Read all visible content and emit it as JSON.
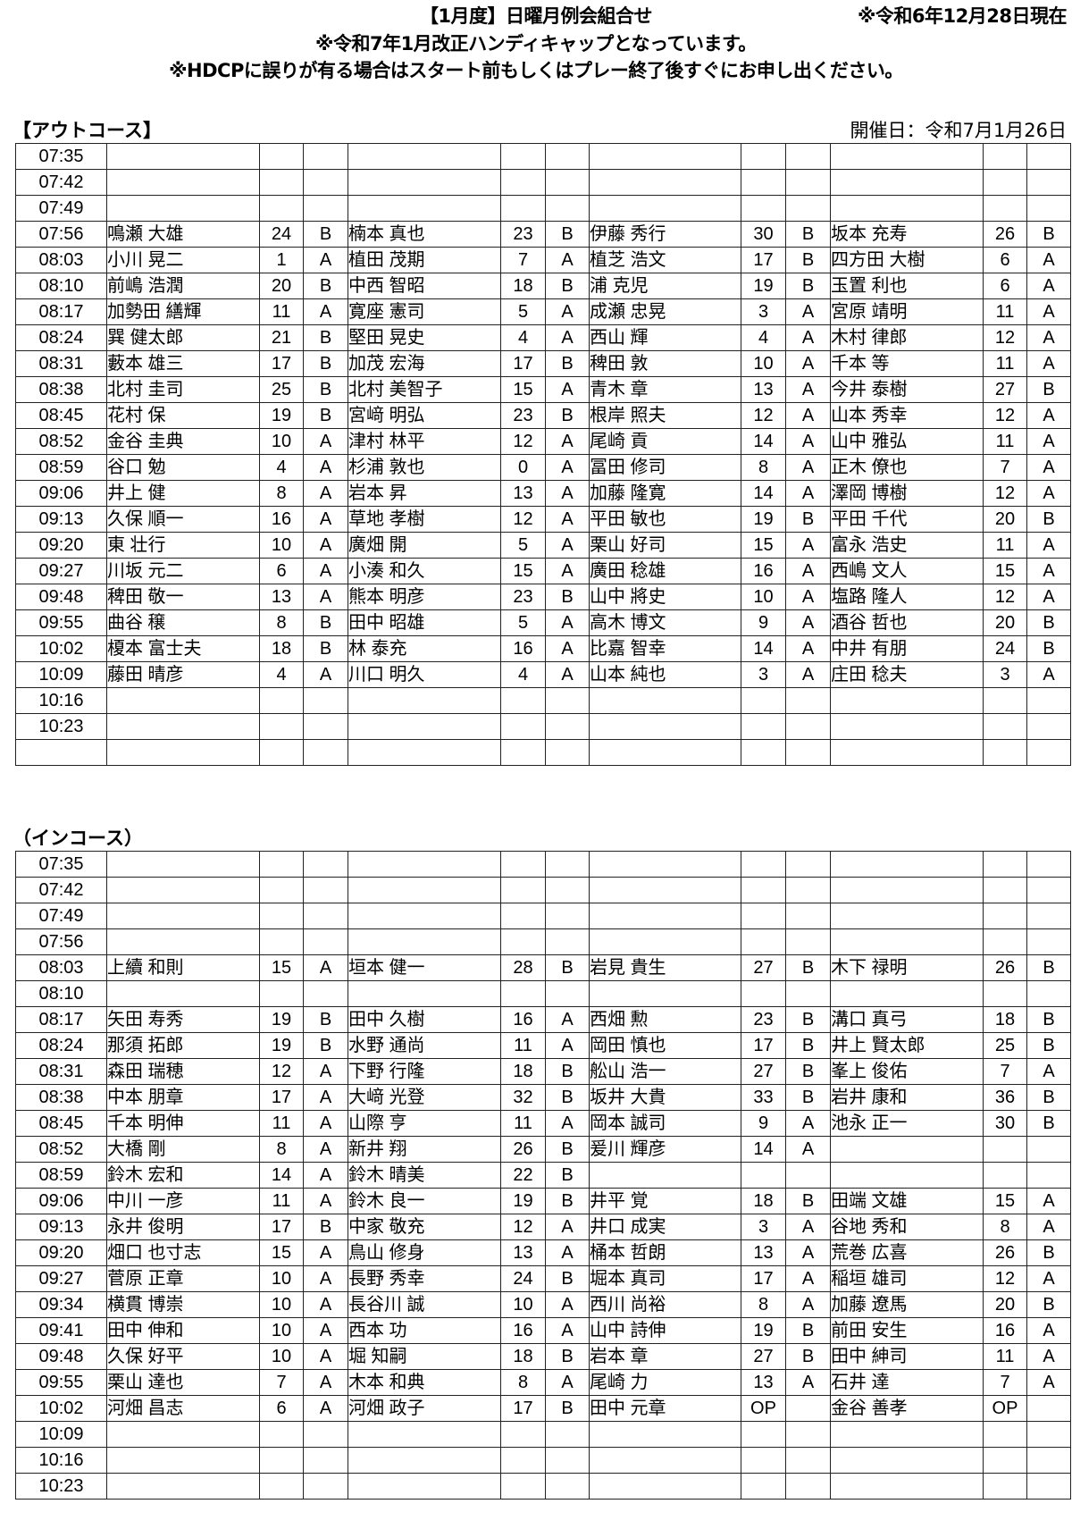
{
  "header": {
    "title": "【1月度】日曜月例会組合せ",
    "as_of": "※令和6年12月28日現在",
    "note1": "※令和7年1月改正ハンディキャップとなっています。",
    "note2": "※HDCPに誤りが有る場合はスタート前もしくはプレー終了後すぐにお申し出ください。"
  },
  "out_course": {
    "label": "【アウトコース】",
    "date": "開催日：令和7月1月26日",
    "rows": [
      [
        "07:35",
        "",
        "",
        "",
        "",
        "",
        "",
        "",
        "",
        "",
        "",
        "",
        ""
      ],
      [
        "07:42",
        "",
        "",
        "",
        "",
        "",
        "",
        "",
        "",
        "",
        "",
        "",
        ""
      ],
      [
        "07:49",
        "",
        "",
        "",
        "",
        "",
        "",
        "",
        "",
        "",
        "",
        "",
        ""
      ],
      [
        "07:56",
        "鳴瀬 大雄",
        "24",
        "B",
        "楠本 真也",
        "23",
        "B",
        "伊藤 秀行",
        "30",
        "B",
        "坂本 充寿",
        "26",
        "B"
      ],
      [
        "08:03",
        "小川 晃二",
        "1",
        "A",
        "植田 茂期",
        "7",
        "A",
        "植芝 浩文",
        "17",
        "B",
        "四方田 大樹",
        "6",
        "A"
      ],
      [
        "08:10",
        "前嶋 浩潤",
        "20",
        "B",
        "中西 智昭",
        "18",
        "B",
        "浦 克児",
        "19",
        "B",
        "玉置 利也",
        "6",
        "A"
      ],
      [
        "08:17",
        "加勢田 繕輝",
        "11",
        "A",
        "寛座 憲司",
        "5",
        "A",
        "成瀬 忠晃",
        "3",
        "A",
        "宮原 靖明",
        "11",
        "A"
      ],
      [
        "08:24",
        "巽 健太郎",
        "21",
        "B",
        "堅田 晃史",
        "4",
        "A",
        "西山 輝",
        "4",
        "A",
        "木村 律郎",
        "12",
        "A"
      ],
      [
        "08:31",
        "藪本 雄三",
        "17",
        "B",
        "加茂 宏海",
        "17",
        "B",
        "稗田 敦",
        "10",
        "A",
        "千本 等",
        "11",
        "A"
      ],
      [
        "08:38",
        "北村 圭司",
        "25",
        "B",
        "北村 美智子",
        "15",
        "A",
        "青木 章",
        "13",
        "A",
        "今井 泰樹",
        "27",
        "B"
      ],
      [
        "08:45",
        "花村 保",
        "19",
        "B",
        "宮﨑 明弘",
        "23",
        "B",
        "根岸 照夫",
        "12",
        "A",
        "山本 秀幸",
        "12",
        "A"
      ],
      [
        "08:52",
        "金谷 圭典",
        "10",
        "A",
        "津村 林平",
        "12",
        "A",
        "尾崎 貢",
        "14",
        "A",
        "山中 雅弘",
        "11",
        "A"
      ],
      [
        "08:59",
        "谷口 勉",
        "4",
        "A",
        "杉浦 敦也",
        "0",
        "A",
        "冨田 修司",
        "8",
        "A",
        "正木 僚也",
        "7",
        "A"
      ],
      [
        "09:06",
        "井上 健",
        "8",
        "A",
        "岩本 昇",
        "13",
        "A",
        "加藤 隆寛",
        "14",
        "A",
        "澤岡 博樹",
        "12",
        "A"
      ],
      [
        "09:13",
        "久保 順一",
        "16",
        "A",
        "草地 孝樹",
        "12",
        "A",
        "平田 敏也",
        "19",
        "B",
        "平田 千代",
        "20",
        "B"
      ],
      [
        "09:20",
        "東 壮行",
        "10",
        "A",
        "廣畑 開",
        "5",
        "A",
        "栗山 好司",
        "15",
        "A",
        "富永 浩史",
        "11",
        "A"
      ],
      [
        "09:27",
        "川坂 元二",
        "6",
        "A",
        "小湊 和久",
        "15",
        "A",
        "廣田 稔雄",
        "16",
        "A",
        "西嶋 文人",
        "15",
        "A"
      ],
      [
        "09:48",
        "稗田 敬一",
        "13",
        "A",
        "熊本 明彦",
        "23",
        "B",
        "山中 將史",
        "10",
        "A",
        "塩路 隆人",
        "12",
        "A"
      ],
      [
        "09:55",
        "曲谷 穣",
        "8",
        "B",
        "田中 昭雄",
        "5",
        "A",
        "高木 博文",
        "9",
        "A",
        "酒谷 哲也",
        "20",
        "B"
      ],
      [
        "10:02",
        "榎本 富士夫",
        "18",
        "B",
        "林 泰充",
        "16",
        "A",
        "比嘉 智幸",
        "14",
        "A",
        "中井 有朋",
        "24",
        "B"
      ],
      [
        "10:09",
        "藤田 晴彦",
        "4",
        "A",
        "川口 明久",
        "4",
        "A",
        "山本 純也",
        "3",
        "A",
        "庄田 稔夫",
        "3",
        "A"
      ],
      [
        "10:16",
        "",
        "",
        "",
        "",
        "",
        "",
        "",
        "",
        "",
        "",
        "",
        ""
      ],
      [
        "10:23",
        "",
        "",
        "",
        "",
        "",
        "",
        "",
        "",
        "",
        "",
        "",
        ""
      ],
      [
        "",
        "",
        "",
        "",
        "",
        "",
        "",
        "",
        "",
        "",
        "",
        "",
        ""
      ]
    ]
  },
  "in_course": {
    "label": "（インコース）",
    "rows": [
      [
        "07:35",
        "",
        "",
        "",
        "",
        "",
        "",
        "",
        "",
        "",
        "",
        "",
        ""
      ],
      [
        "07:42",
        "",
        "",
        "",
        "",
        "",
        "",
        "",
        "",
        "",
        "",
        "",
        ""
      ],
      [
        "07:49",
        "",
        "",
        "",
        "",
        "",
        "",
        "",
        "",
        "",
        "",
        "",
        ""
      ],
      [
        "07:56",
        "",
        "",
        "",
        "",
        "",
        "",
        "",
        "",
        "",
        "",
        "",
        ""
      ],
      [
        "08:03",
        "上續 和則",
        "15",
        "A",
        "垣本 健一",
        "28",
        "B",
        "岩見 貴生",
        "27",
        "B",
        "木下 禄明",
        "26",
        "B"
      ],
      [
        "08:10",
        "",
        "",
        "",
        "",
        "",
        "",
        "",
        "",
        "",
        "",
        "",
        ""
      ],
      [
        "08:17",
        "矢田 寿秀",
        "19",
        "B",
        "田中 久樹",
        "16",
        "A",
        "西畑 勲",
        "23",
        "B",
        "溝口 真弓",
        "18",
        "B"
      ],
      [
        "08:24",
        "那須 拓郎",
        "19",
        "B",
        "水野 通尚",
        "11",
        "A",
        "岡田 慎也",
        "17",
        "B",
        "井上 賢太郎",
        "25",
        "B"
      ],
      [
        "08:31",
        "森田 瑞穂",
        "12",
        "A",
        "下野 行隆",
        "18",
        "B",
        "舩山 浩一",
        "27",
        "B",
        "峯上 俊佑",
        "7",
        "A"
      ],
      [
        "08:38",
        "中本 朋章",
        "17",
        "A",
        "大﨑 光登",
        "32",
        "B",
        "坂井 大貴",
        "33",
        "B",
        "岩井 康和",
        "36",
        "B"
      ],
      [
        "08:45",
        "千本 明伸",
        "11",
        "A",
        "山際 亨",
        "11",
        "A",
        "岡本 誠司",
        "9",
        "A",
        "池永 正一",
        "30",
        "B"
      ],
      [
        "08:52",
        "大橋 剛",
        "8",
        "A",
        "新井 翔",
        "26",
        "B",
        "爰川 輝彦",
        "14",
        "A",
        "",
        "",
        ""
      ],
      [
        "08:59",
        "鈴木 宏和",
        "14",
        "A",
        "鈴木 晴美",
        "22",
        "B",
        "",
        "",
        "",
        "",
        "",
        ""
      ],
      [
        "09:06",
        "中川 一彦",
        "11",
        "A",
        "鈴木 良一",
        "19",
        "B",
        "井平 覚",
        "18",
        "B",
        "田端 文雄",
        "15",
        "A"
      ],
      [
        "09:13",
        "永井 俊明",
        "17",
        "B",
        "中家 敬充",
        "12",
        "A",
        "井口 成実",
        "3",
        "A",
        "谷地 秀和",
        "8",
        "A"
      ],
      [
        "09:20",
        "畑口 也寸志",
        "15",
        "A",
        "鳥山 修身",
        "13",
        "A",
        "桶本 哲朗",
        "13",
        "A",
        "荒巻 広喜",
        "26",
        "B"
      ],
      [
        "09:27",
        "菅原 正章",
        "10",
        "A",
        "長野 秀幸",
        "24",
        "B",
        "堀本 真司",
        "17",
        "A",
        "稲垣 雄司",
        "12",
        "A"
      ],
      [
        "09:34",
        "横貫 博崇",
        "10",
        "A",
        "長谷川 誠",
        "10",
        "A",
        "西川 尚裕",
        "8",
        "A",
        "加藤 遼馬",
        "20",
        "B"
      ],
      [
        "09:41",
        "田中 伸和",
        "10",
        "A",
        "西本 功",
        "16",
        "A",
        "山中 詩伸",
        "19",
        "B",
        "前田 安生",
        "16",
        "A"
      ],
      [
        "09:48",
        "久保 好平",
        "10",
        "A",
        "堀 知嗣",
        "18",
        "B",
        "岩本 章",
        "27",
        "B",
        "田中 紳司",
        "11",
        "A"
      ],
      [
        "09:55",
        "栗山 達也",
        "7",
        "A",
        "木本 和典",
        "8",
        "A",
        "尾崎 力",
        "13",
        "A",
        "石井 達",
        "7",
        "A"
      ],
      [
        "10:02",
        "河畑 昌志",
        "6",
        "A",
        "河畑 政子",
        "17",
        "B",
        "田中 元章",
        "OP",
        "",
        "金谷 善孝",
        "OP",
        ""
      ],
      [
        "10:09",
        "",
        "",
        "",
        "",
        "",
        "",
        "",
        "",
        "",
        "",
        "",
        ""
      ],
      [
        "10:16",
        "",
        "",
        "",
        "",
        "",
        "",
        "",
        "",
        "",
        "",
        "",
        ""
      ],
      [
        "10:23",
        "",
        "",
        "",
        "",
        "",
        "",
        "",
        "",
        "",
        "",
        "",
        ""
      ]
    ]
  }
}
